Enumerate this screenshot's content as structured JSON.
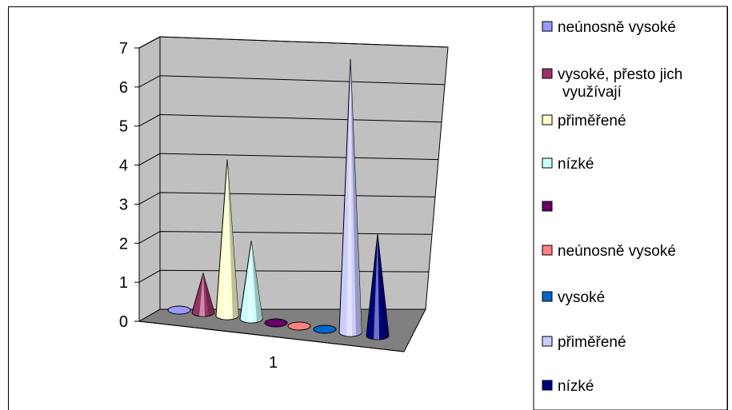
{
  "chart_data": {
    "type": "bar",
    "style": "3d-cone",
    "categories": [
      "1"
    ],
    "y_ticks": [
      "0",
      "1",
      "2",
      "3",
      "4",
      "5",
      "6",
      "7"
    ],
    "ylim": [
      0,
      7
    ],
    "grid": true,
    "legend_position": "right",
    "series": [
      {
        "name": "neúnosně vysoké",
        "values": [
          0
        ],
        "color": "#9999ff"
      },
      {
        "name": "vysoké, přesto jich využívají",
        "values": [
          1
        ],
        "color": "#993366"
      },
      {
        "name": "přiměřené",
        "values": [
          4
        ],
        "color": "#ffffcc"
      },
      {
        "name": "nízké",
        "values": [
          2
        ],
        "color": "#ccffff"
      },
      {
        "name": "",
        "values": [
          0
        ],
        "color": "#660066"
      },
      {
        "name": "neúnosně vysoké",
        "values": [
          0
        ],
        "color": "#ff8080"
      },
      {
        "name": "vysoké",
        "values": [
          0
        ],
        "color": "#0066cc"
      },
      {
        "name": "přiměřené",
        "values": [
          7
        ],
        "color": "#ccccff"
      },
      {
        "name": "nízké",
        "values": [
          2.6
        ],
        "color": "#000080"
      }
    ]
  }
}
